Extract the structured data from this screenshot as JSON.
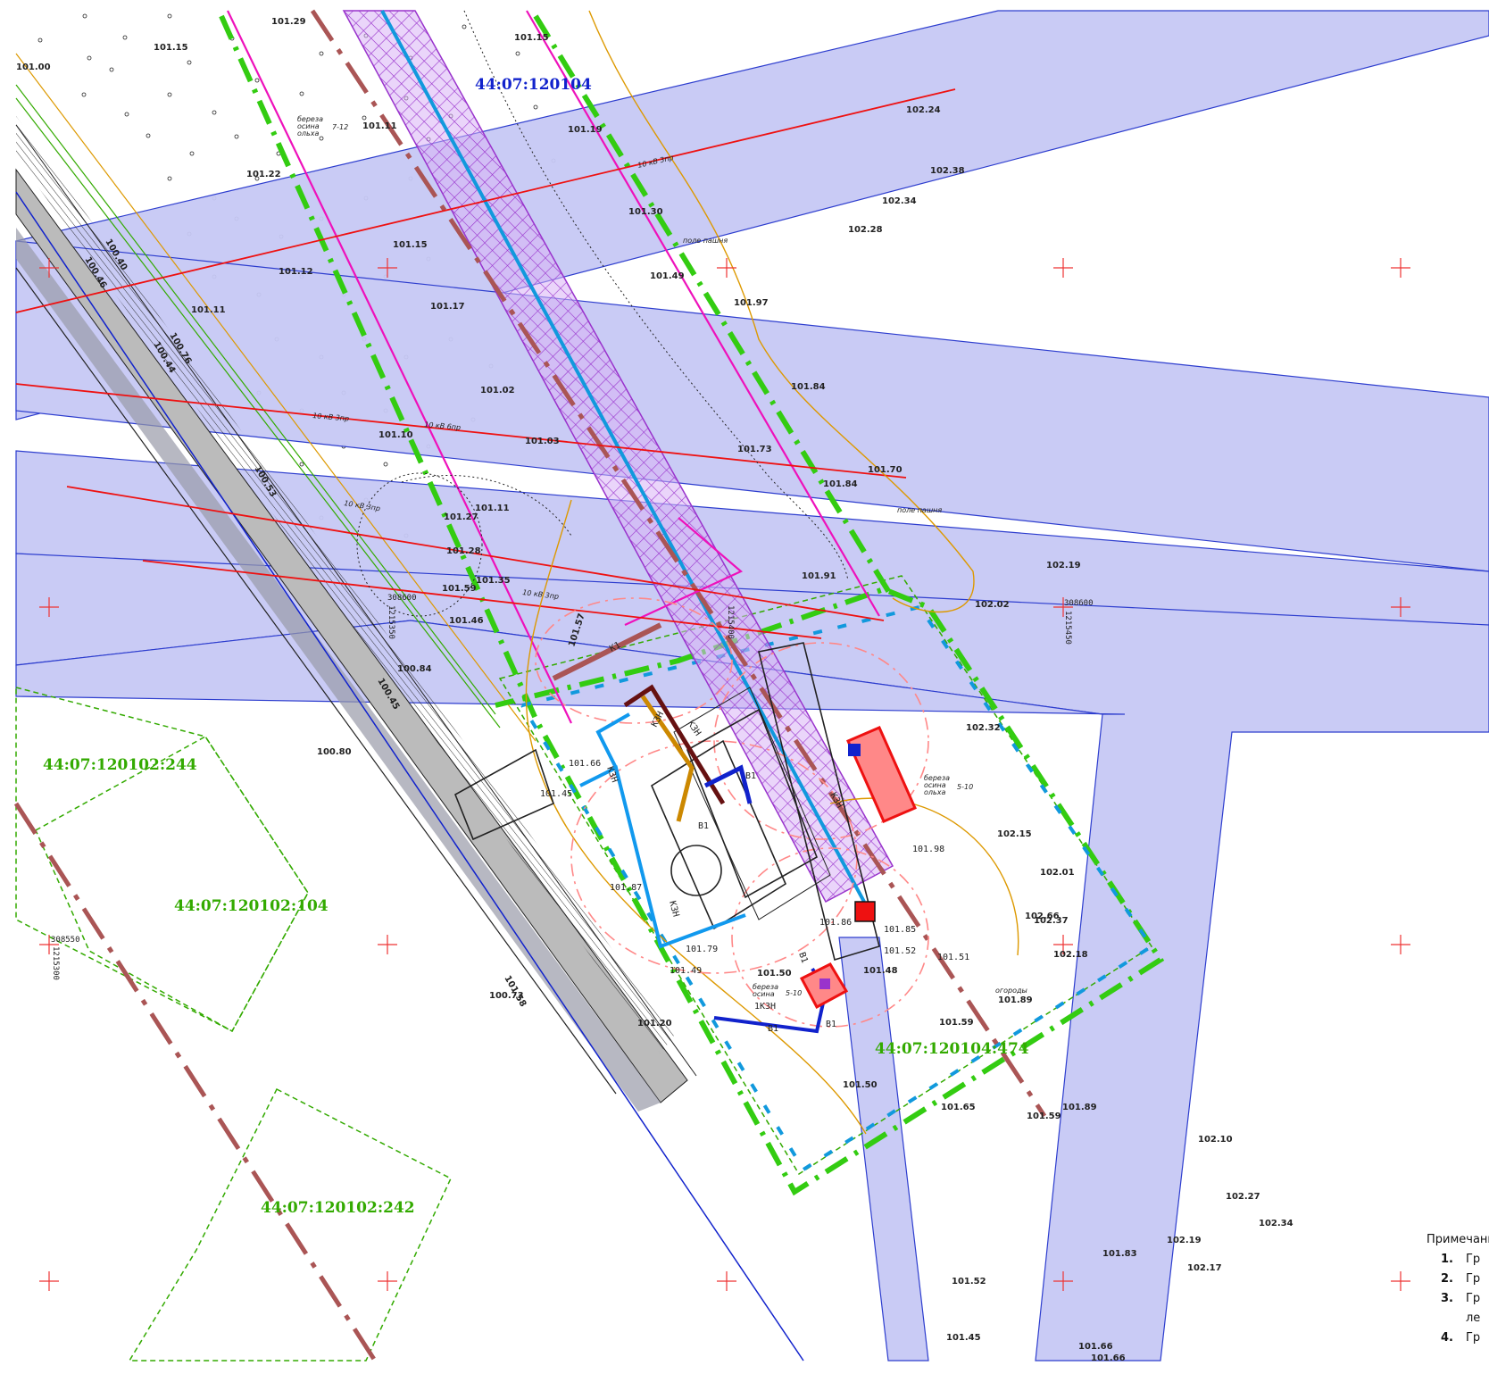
{
  "colors": {
    "zone_fill": "#c7c9f5",
    "zone_stroke": "#2233cc",
    "boundary_green": "#33cc11",
    "parcel_green": "#33aa00",
    "power_line": "#ee1111",
    "magenta_line": "#ee11bb",
    "brown_line": "#aa5555",
    "cyan_pipe": "#1199dd",
    "hatch": "#9933cc",
    "orange_line": "#dd9900",
    "cross_mark": "#ee3333"
  },
  "parcels": {
    "main_top": "44:07:120104",
    "p244": "44:07:120102:244",
    "p104": "44:07:120102:104",
    "p242": "44:07:120102:242",
    "p474": "44:07:120104:474"
  },
  "power_labels": {
    "l1": "10 кВ 3пр",
    "l2": "10 кВ 3пр",
    "l3": "10 кВ 6пр",
    "l4": "10 кВ 3пр",
    "l5": "10 кВ 3пр"
  },
  "land_labels": {
    "field1": "поле пашня",
    "field2": "поле пашня",
    "gardens": "огороды"
  },
  "tree_labels": {
    "t1a": "береза",
    "t1b": "осина",
    "t1c": "ольха",
    "t1n": "7-12",
    "t2a": "береза",
    "t2b": "осина",
    "t2c": "ольха",
    "t2n": "5-10",
    "t3a": "береза",
    "t3b": "осина",
    "t3n": "5-10"
  },
  "coords": {
    "c1": "308600",
    "c2": "1215350",
    "c3": "308600",
    "c4": "1215450",
    "c5": "308550",
    "c6": "1215300",
    "c7": "1215400"
  },
  "network_labels": {
    "k1": "К1",
    "k2": "К3Н",
    "k3": "К3Н",
    "k4": "К3Н",
    "k5": "К3Н",
    "k6": "К3Н",
    "b1": "В1",
    "b2": "В1",
    "b3": "В1",
    "b4": "В1",
    "b5": "В1",
    "t1": "1К3Н"
  },
  "elevations": [
    "101.29",
    "101.15",
    "101.15",
    "101.00",
    "101.11",
    "101.19",
    "101.22",
    "102.24",
    "102.38",
    "102.34",
    "101.30",
    "102.28",
    "101.15",
    "101.12",
    "101.49",
    "101.97",
    "101.11",
    "101.17",
    "101.84",
    "101.02",
    "101.10",
    "101.03",
    "101.73",
    "101.84",
    "101.70",
    "101.11",
    "101.27",
    "101.28",
    "101.35",
    "101.59",
    "101.46",
    "101.91",
    "102.19",
    "102.02",
    "100.84",
    "100.80",
    "101.57",
    "101.66",
    "101.45",
    "101.87",
    "102.32",
    "102.15",
    "102.01",
    "102.66",
    "102.37",
    "102.18",
    "101.98",
    "101.86",
    "101.85",
    "101.52",
    "101.51",
    "101.79",
    "101.50",
    "101.48",
    "101.89",
    "101.59",
    "101.49",
    "101.20",
    "101.50",
    "101.65",
    "101.59",
    "101.89",
    "100.73",
    "102.10",
    "102.27",
    "102.34",
    "102.19",
    "102.17",
    "101.83",
    "101.52",
    "101.45",
    "101.66",
    "101.66",
    "100.76",
    "100.44",
    "100.53",
    "100.45",
    "100.46",
    "100.40",
    "101.58"
  ],
  "notes": {
    "title": "Примечания",
    "items": [
      {
        "num": "1.",
        "text": "Гр"
      },
      {
        "num": "2.",
        "text": "Гр"
      },
      {
        "num": "3.",
        "text": "Гр"
      },
      {
        "num": "",
        "text": "ле"
      },
      {
        "num": "4.",
        "text": "Гр"
      }
    ]
  }
}
